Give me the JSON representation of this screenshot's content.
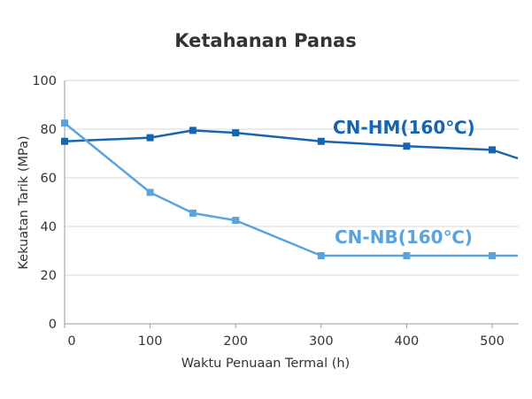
{
  "chart_data": {
    "type": "line",
    "title": "Ketahanan Panas",
    "xlabel": "Waktu Penuaan Termal (h)",
    "ylabel": "Kekuatan Tarik (MPa)",
    "xlim": [
      0,
      530
    ],
    "ylim": [
      0,
      100
    ],
    "x_ticks": [
      0,
      100,
      200,
      300,
      400,
      500
    ],
    "y_ticks": [
      0,
      20,
      40,
      60,
      80,
      100
    ],
    "grid": true,
    "series": [
      {
        "name": "CN-HM(160℃)",
        "color": "#1565b0",
        "x": [
          0,
          100,
          150,
          200,
          300,
          400,
          500,
          530
        ],
        "y": [
          75,
          76.5,
          79.5,
          78.5,
          75,
          73,
          71.5,
          68
        ],
        "markers": [
          true,
          true,
          true,
          true,
          true,
          true,
          true,
          false
        ]
      },
      {
        "name": "CN-NB(160℃)",
        "color": "#5ba3dc",
        "x": [
          0,
          100,
          150,
          200,
          300,
          400,
          500,
          530
        ],
        "y": [
          82.5,
          54,
          45.5,
          42.5,
          28,
          28,
          28,
          28
        ],
        "markers": [
          true,
          true,
          true,
          true,
          true,
          true,
          true,
          false
        ]
      }
    ]
  }
}
